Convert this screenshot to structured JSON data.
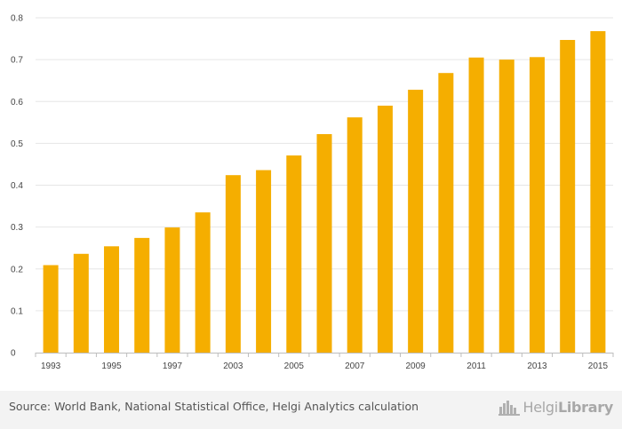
{
  "chart_data": {
    "type": "bar",
    "title": "",
    "xlabel": "",
    "ylabel": "",
    "categories": [
      "1993",
      "1994",
      "1995",
      "1996",
      "1997",
      "1998",
      "2003",
      "2004",
      "2005",
      "2006",
      "2007",
      "2008",
      "2009",
      "2010",
      "2011",
      "2012",
      "2013",
      "2014",
      "2015"
    ],
    "x_tick_labels": [
      "1993",
      "",
      "1995",
      "",
      "1997",
      "",
      "2003",
      "",
      "2005",
      "",
      "2007",
      "",
      "2009",
      "",
      "2011",
      "",
      "2013",
      "",
      "2015"
    ],
    "values": [
      0.209,
      0.236,
      0.254,
      0.274,
      0.299,
      0.335,
      0.424,
      0.436,
      0.471,
      0.522,
      0.562,
      0.59,
      0.628,
      0.668,
      0.705,
      0.7,
      0.706,
      0.747,
      0.768
    ],
    "ylim": [
      0,
      0.8
    ],
    "y_ticks": [
      "0",
      "0.1",
      "0.2",
      "0.3",
      "0.4",
      "0.5",
      "0.6",
      "0.7",
      "0.8"
    ],
    "grid": true,
    "bar_color": "#f5ae00",
    "grid_color": "#e6e6e6"
  },
  "footer": {
    "source": "Source: World Bank, National Statistical Office, Helgi Analytics calculation",
    "logo_part1": "Helgi",
    "logo_part2": "Library"
  }
}
